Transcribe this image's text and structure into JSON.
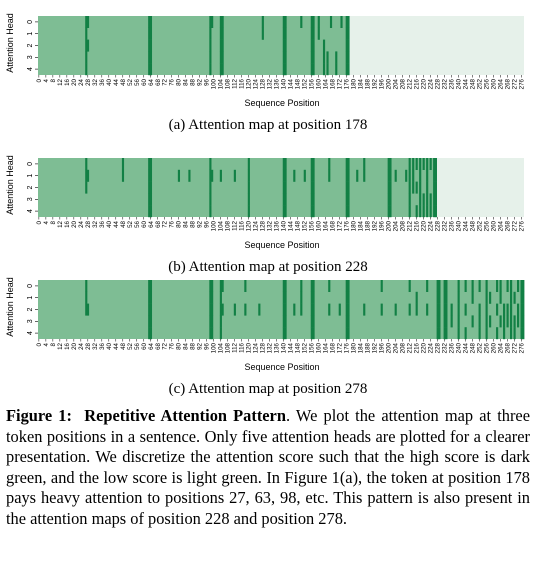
{
  "figure": {
    "colors": {
      "low": "#7ebd94",
      "high": "#128045",
      "masked": "#e6f1ea"
    },
    "y_label": "Attention Head",
    "x_label": "Sequence Position",
    "head_ticks": [
      "0",
      "1",
      "2",
      "3",
      "4"
    ],
    "x_ticks": [
      "0",
      "4",
      "8",
      "12",
      "16",
      "20",
      "24",
      "28",
      "32",
      "36",
      "40",
      "44",
      "48",
      "52",
      "56",
      "60",
      "64",
      "68",
      "72",
      "76",
      "80",
      "84",
      "88",
      "92",
      "96",
      "100",
      "104",
      "108",
      "112",
      "116",
      "120",
      "124",
      "128",
      "132",
      "136",
      "140",
      "144",
      "148",
      "152",
      "156",
      "160",
      "164",
      "168",
      "172",
      "176",
      "180",
      "184",
      "188",
      "192",
      "196",
      "200",
      "204",
      "208",
      "212",
      "216",
      "220",
      "224",
      "228",
      "232",
      "236",
      "240",
      "244",
      "248",
      "252",
      "256",
      "260",
      "264",
      "268",
      "272",
      "276"
    ],
    "panels": [
      {
        "id": "a",
        "caption": "(a) Attention map at position 178",
        "query_position": 178
      },
      {
        "id": "b",
        "caption": "(b) Attention map at position 228",
        "query_position": 228
      },
      {
        "id": "c",
        "caption": "(c) Attention map at position 278",
        "query_position": 278
      }
    ]
  },
  "chart_data": [
    {
      "type": "heatmap",
      "title": "(a) Attention map at position 178",
      "xlabel": "Sequence Position",
      "ylabel": "Attention Head",
      "rows": [
        "0",
        "1",
        "2",
        "3",
        "4"
      ],
      "x_range": [
        0,
        277
      ],
      "valid_until": 178,
      "high_score_cells": [
        {
          "x": 27,
          "heads": [
            0,
            1,
            2,
            3,
            4
          ]
        },
        {
          "x": 28,
          "heads": [
            0,
            2
          ]
        },
        {
          "x": 63,
          "heads": [
            0,
            1,
            2,
            3,
            4
          ]
        },
        {
          "x": 64,
          "heads": [
            0,
            1,
            2,
            3,
            4
          ]
        },
        {
          "x": 98,
          "heads": [
            0,
            1,
            2,
            3,
            4
          ]
        },
        {
          "x": 99,
          "heads": [
            0
          ]
        },
        {
          "x": 104,
          "heads": [
            0,
            1,
            2,
            3,
            4
          ]
        },
        {
          "x": 105,
          "heads": [
            0,
            1,
            2,
            3,
            4
          ]
        },
        {
          "x": 128,
          "heads": [
            0,
            1
          ]
        },
        {
          "x": 140,
          "heads": [
            0,
            1,
            2,
            3,
            4
          ]
        },
        {
          "x": 141,
          "heads": [
            0,
            1,
            2,
            3,
            4
          ]
        },
        {
          "x": 150,
          "heads": [
            0
          ]
        },
        {
          "x": 156,
          "heads": [
            0,
            1,
            2,
            3,
            4
          ]
        },
        {
          "x": 157,
          "heads": [
            0,
            1,
            2,
            3,
            4
          ]
        },
        {
          "x": 160,
          "heads": [
            0,
            1
          ]
        },
        {
          "x": 163,
          "heads": [
            2,
            3,
            4
          ]
        },
        {
          "x": 165,
          "heads": [
            3,
            4
          ]
        },
        {
          "x": 167,
          "heads": [
            0
          ]
        },
        {
          "x": 170,
          "heads": [
            3,
            4
          ]
        },
        {
          "x": 173,
          "heads": [
            0
          ]
        },
        {
          "x": 176,
          "heads": [
            0,
            1,
            2,
            3,
            4
          ]
        },
        {
          "x": 177,
          "heads": [
            0,
            1,
            2,
            3,
            4
          ]
        }
      ]
    },
    {
      "type": "heatmap",
      "title": "(b) Attention map at position 228",
      "xlabel": "Sequence Position",
      "ylabel": "Attention Head",
      "rows": [
        "0",
        "1",
        "2",
        "3",
        "4"
      ],
      "x_range": [
        0,
        277
      ],
      "valid_until": 228,
      "high_score_cells": [
        {
          "x": 27,
          "heads": [
            0,
            1,
            2
          ]
        },
        {
          "x": 28,
          "heads": [
            1
          ]
        },
        {
          "x": 48,
          "heads": [
            0,
            1
          ]
        },
        {
          "x": 63,
          "heads": [
            0,
            1,
            2,
            3,
            4
          ]
        },
        {
          "x": 64,
          "heads": [
            0,
            1,
            2,
            3,
            4
          ]
        },
        {
          "x": 80,
          "heads": [
            1
          ]
        },
        {
          "x": 86,
          "heads": [
            1
          ]
        },
        {
          "x": 98,
          "heads": [
            0,
            1,
            2,
            3,
            4
          ]
        },
        {
          "x": 99,
          "heads": [
            1
          ]
        },
        {
          "x": 104,
          "heads": [
            1
          ]
        },
        {
          "x": 112,
          "heads": [
            1
          ]
        },
        {
          "x": 120,
          "heads": [
            0,
            1,
            2,
            3,
            4
          ]
        },
        {
          "x": 140,
          "heads": [
            0,
            1,
            2,
            3,
            4
          ]
        },
        {
          "x": 141,
          "heads": [
            0,
            1,
            2,
            3,
            4
          ]
        },
        {
          "x": 146,
          "heads": [
            1
          ]
        },
        {
          "x": 152,
          "heads": [
            1
          ]
        },
        {
          "x": 156,
          "heads": [
            0,
            1,
            2,
            3,
            4
          ]
        },
        {
          "x": 157,
          "heads": [
            0,
            1,
            2,
            3,
            4
          ]
        },
        {
          "x": 166,
          "heads": [
            0,
            1
          ]
        },
        {
          "x": 176,
          "heads": [
            0,
            1,
            2,
            3,
            4
          ]
        },
        {
          "x": 177,
          "heads": [
            0,
            1,
            2,
            3,
            4
          ]
        },
        {
          "x": 182,
          "heads": [
            1
          ]
        },
        {
          "x": 186,
          "heads": [
            0,
            1
          ]
        },
        {
          "x": 200,
          "heads": [
            0,
            1,
            2,
            3,
            4
          ]
        },
        {
          "x": 201,
          "heads": [
            0,
            1,
            2,
            3,
            4
          ]
        },
        {
          "x": 204,
          "heads": [
            1
          ]
        },
        {
          "x": 210,
          "heads": [
            1
          ]
        },
        {
          "x": 212,
          "heads": [
            0,
            1,
            2,
            3,
            4
          ]
        },
        {
          "x": 214,
          "heads": [
            0,
            1,
            2
          ]
        },
        {
          "x": 216,
          "heads": [
            0,
            2,
            4
          ]
        },
        {
          "x": 218,
          "heads": [
            0,
            1,
            2,
            3,
            4
          ]
        },
        {
          "x": 220,
          "heads": [
            0,
            3,
            4
          ]
        },
        {
          "x": 222,
          "heads": [
            0,
            1,
            2,
            3,
            4
          ]
        },
        {
          "x": 224,
          "heads": [
            0,
            3,
            4
          ]
        },
        {
          "x": 226,
          "heads": [
            0,
            1,
            2,
            3,
            4
          ]
        },
        {
          "x": 227,
          "heads": [
            0,
            1,
            2,
            3,
            4
          ]
        }
      ]
    },
    {
      "type": "heatmap",
      "title": "(c) Attention map at position 278",
      "xlabel": "Sequence Position",
      "ylabel": "Attention Head",
      "rows": [
        "0",
        "1",
        "2",
        "3",
        "4"
      ],
      "x_range": [
        0,
        277
      ],
      "valid_until": 278,
      "high_score_cells": [
        {
          "x": 27,
          "heads": [
            0,
            1,
            2
          ]
        },
        {
          "x": 28,
          "heads": [
            2
          ]
        },
        {
          "x": 63,
          "heads": [
            0,
            1,
            2,
            3,
            4
          ]
        },
        {
          "x": 64,
          "heads": [
            0,
            1,
            2,
            3,
            4
          ]
        },
        {
          "x": 98,
          "heads": [
            0,
            1,
            2,
            3,
            4
          ]
        },
        {
          "x": 99,
          "heads": [
            0,
            1,
            2,
            3,
            4
          ]
        },
        {
          "x": 104,
          "heads": [
            0,
            1,
            2,
            3,
            4
          ]
        },
        {
          "x": 105,
          "heads": [
            0,
            2
          ]
        },
        {
          "x": 112,
          "heads": [
            2
          ]
        },
        {
          "x": 118,
          "heads": [
            0,
            2
          ]
        },
        {
          "x": 126,
          "heads": [
            2
          ]
        },
        {
          "x": 140,
          "heads": [
            0,
            1,
            2,
            3,
            4
          ]
        },
        {
          "x": 141,
          "heads": [
            0,
            1,
            2,
            3,
            4
          ]
        },
        {
          "x": 146,
          "heads": [
            2
          ]
        },
        {
          "x": 150,
          "heads": [
            0,
            1,
            2
          ]
        },
        {
          "x": 156,
          "heads": [
            0,
            1,
            2,
            3,
            4
          ]
        },
        {
          "x": 157,
          "heads": [
            0,
            1,
            2,
            3,
            4
          ]
        },
        {
          "x": 166,
          "heads": [
            0,
            2
          ]
        },
        {
          "x": 172,
          "heads": [
            2
          ]
        },
        {
          "x": 176,
          "heads": [
            0,
            1,
            2,
            3,
            4
          ]
        },
        {
          "x": 177,
          "heads": [
            0,
            1,
            2,
            3,
            4
          ]
        },
        {
          "x": 186,
          "heads": [
            2
          ]
        },
        {
          "x": 196,
          "heads": [
            0,
            2
          ]
        },
        {
          "x": 204,
          "heads": [
            2
          ]
        },
        {
          "x": 212,
          "heads": [
            0,
            2
          ]
        },
        {
          "x": 216,
          "heads": [
            1,
            2
          ]
        },
        {
          "x": 222,
          "heads": [
            0,
            2
          ]
        },
        {
          "x": 228,
          "heads": [
            0,
            1,
            2,
            3,
            4
          ]
        },
        {
          "x": 229,
          "heads": [
            0,
            1,
            2,
            3,
            4
          ]
        },
        {
          "x": 232,
          "heads": [
            0,
            1,
            2,
            3,
            4
          ]
        },
        {
          "x": 233,
          "heads": [
            0,
            1,
            2,
            3,
            4
          ]
        },
        {
          "x": 236,
          "heads": [
            2,
            3
          ]
        },
        {
          "x": 240,
          "heads": [
            0,
            1,
            2,
            3,
            4
          ]
        },
        {
          "x": 244,
          "heads": [
            0,
            2,
            4
          ]
        },
        {
          "x": 248,
          "heads": [
            0,
            1,
            3
          ]
        },
        {
          "x": 252,
          "heads": [
            0,
            2,
            3,
            4
          ]
        },
        {
          "x": 256,
          "heads": [
            0,
            1,
            2,
            3,
            4
          ]
        },
        {
          "x": 258,
          "heads": [
            1,
            3
          ]
        },
        {
          "x": 262,
          "heads": [
            0,
            2,
            4
          ]
        },
        {
          "x": 264,
          "heads": [
            0,
            1,
            3
          ]
        },
        {
          "x": 266,
          "heads": [
            2,
            3,
            4
          ]
        },
        {
          "x": 268,
          "heads": [
            0,
            2,
            3
          ]
        },
        {
          "x": 270,
          "heads": [
            0,
            1,
            2,
            3,
            4
          ]
        },
        {
          "x": 272,
          "heads": [
            1,
            3,
            4
          ]
        },
        {
          "x": 274,
          "heads": [
            0,
            2,
            3
          ]
        },
        {
          "x": 276,
          "heads": [
            0,
            1,
            2,
            3,
            4
          ]
        },
        {
          "x": 277,
          "heads": [
            0,
            1,
            2,
            3,
            4
          ]
        }
      ]
    }
  ],
  "caption": {
    "label": "Figure 1:",
    "title": "Repetitive Attention Pattern",
    "text": ". We plot the attention map at three token positions in a sentence. Only five attention heads are plotted for a clearer presentation. We discretize the attention score such that the high score is dark green, and the low score is light green. In Figure 1(a), the token at position 178 pays heavy attention to positions 27, 63, 98, etc. This pattern is also present in the attention maps of position 228 and position 278."
  }
}
